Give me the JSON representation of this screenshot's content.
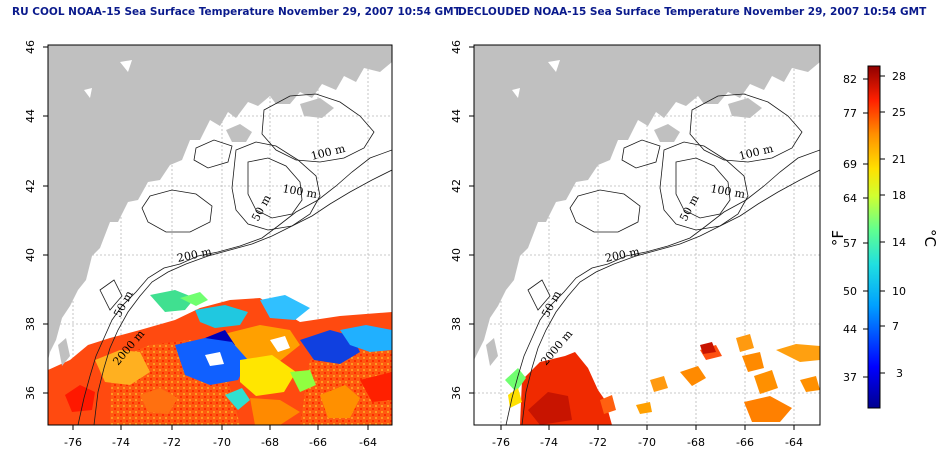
{
  "titles": {
    "left": "RU COOL NOAA-15 Sea Surface Temperature November 29, 2007 10:54 GMT",
    "right": "DECLOUDED NOAA-15 Sea Surface Temperature November 29, 2007 10:54 GMT"
  },
  "axes": {
    "lon_ticks": [
      "-76",
      "-74",
      "-72",
      "-70",
      "-68",
      "-66",
      "-64"
    ],
    "lat_ticks": [
      "46",
      "44",
      "42",
      "40",
      "38",
      "36"
    ]
  },
  "contour_labels": {
    "left": [
      "100 m",
      "100 m",
      "50 m",
      "200 m",
      "50 m",
      "2000 m"
    ],
    "right": [
      "100 m",
      "100 m",
      "50 m",
      "200 m",
      "50 m",
      "2000 m"
    ]
  },
  "colorbar": {
    "fahrenheit_label": "°F",
    "celsius_label": "°C",
    "fahrenheit_ticks": [
      "82",
      "77",
      "69",
      "64",
      "57",
      "50",
      "44",
      "37"
    ],
    "celsius_ticks": [
      "28",
      "25",
      "21",
      "18",
      "14",
      "10",
      "7",
      "3"
    ]
  },
  "colors": {
    "land": "#c0c0c0",
    "title": "#0a1a8c"
  }
}
